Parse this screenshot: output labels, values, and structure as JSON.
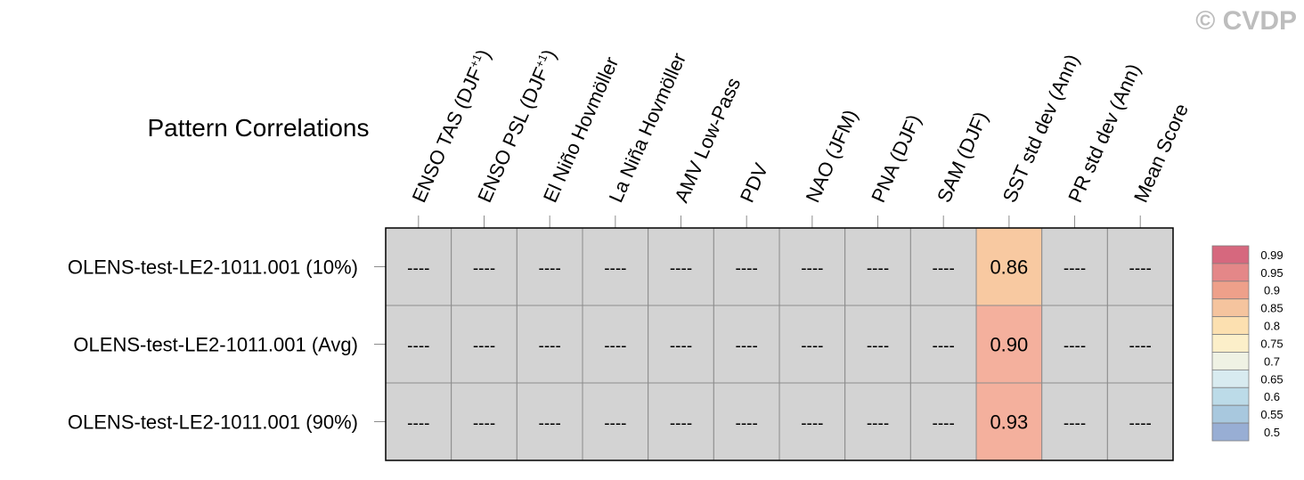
{
  "watermark": "© CVDP",
  "chart_data": {
    "type": "heatmap",
    "title": "Pattern Correlations",
    "columns": [
      {
        "main": "ENSO TAS (DJF",
        "sup": "+1",
        "tail": ")"
      },
      {
        "main": "ENSO PSL (DJF",
        "sup": "+1",
        "tail": ")"
      },
      {
        "main": "El Niño Hovmöller"
      },
      {
        "main": "La Niña Hovmöller"
      },
      {
        "main": "AMV Low-Pass"
      },
      {
        "main": "PDV"
      },
      {
        "main": "NAO (JFM)"
      },
      {
        "main": "PNA (DJF)"
      },
      {
        "main": "SAM (DJF)"
      },
      {
        "main": "SST std dev (Ann)"
      },
      {
        "main": "PR std dev (Ann)"
      },
      {
        "main": "Mean Score"
      }
    ],
    "rows": [
      "OLENS-test-LE2-1011.001 (10%)",
      "OLENS-test-LE2-1011.001 (Avg)",
      "OLENS-test-LE2-1011.001 (90%)"
    ],
    "values": [
      [
        null,
        null,
        null,
        null,
        null,
        null,
        null,
        null,
        null,
        0.86,
        null,
        null
      ],
      [
        null,
        null,
        null,
        null,
        null,
        null,
        null,
        null,
        null,
        0.9,
        null,
        null
      ],
      [
        null,
        null,
        null,
        null,
        null,
        null,
        null,
        null,
        null,
        0.93,
        null,
        null
      ]
    ],
    "cell_labels": [
      [
        "----",
        "----",
        "----",
        "----",
        "----",
        "----",
        "----",
        "----",
        "----",
        "0.86",
        "----",
        "----"
      ],
      [
        "----",
        "----",
        "----",
        "----",
        "----",
        "----",
        "----",
        "----",
        "----",
        "0.90",
        "----",
        "----"
      ],
      [
        "----",
        "----",
        "----",
        "----",
        "----",
        "----",
        "----",
        "----",
        "----",
        "0.93",
        "----",
        "----"
      ]
    ],
    "missing_color": "#d3d3d3",
    "colorbar": {
      "labels": [
        "0.99",
        "0.95",
        "0.9",
        "0.85",
        "0.8",
        "0.75",
        "0.7",
        "0.65",
        "0.6",
        "0.55",
        "0.5"
      ],
      "colors_top_to_bottom": [
        "#d6687e",
        "#e48788",
        "#eea08a",
        "#f5c49e",
        "#fce0b0",
        "#fcefc9",
        "#eff2e4",
        "#d8ebf0",
        "#bcdbe8",
        "#a8c8de",
        "#98aed4"
      ]
    },
    "cell_colors": {
      "0.86": "#f8c9a1",
      "0.90": "#f4b09d",
      "0.93": "#f4b09d"
    }
  }
}
